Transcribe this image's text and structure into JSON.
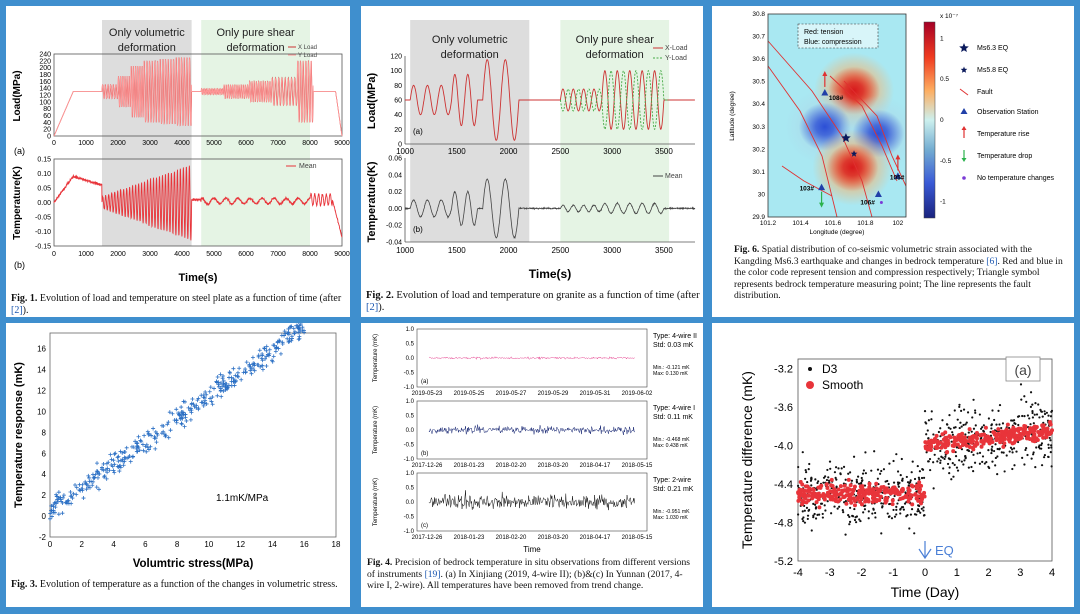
{
  "colors": {
    "background": "#3f8fce",
    "red": "#e8343a",
    "pink": "#e5398a",
    "navy": "#0f1f6e",
    "plus": "#2a6fc4",
    "black": "#111111"
  },
  "fig1": {
    "caption_label": "Fig. 1.",
    "caption": "Evolution of load and temperature on steel plate as a function of time (after ",
    "caption_ref": "[2]",
    "caption_end": ").",
    "region_vol": "Only volumetric deformation",
    "region_shear": "Only pure shear deformation",
    "panel_a": "(a)",
    "panel_b": "(b)",
    "xlabel": "Time(s)",
    "ylabel_top": "Load(MPa)",
    "ylabel_bottom": "Temperature(K)",
    "legend_x": "X Load",
    "legend_y": "Y Load",
    "legend_mean": "Mean",
    "x_ticks": [
      "0",
      "1000",
      "2000",
      "3000",
      "4000",
      "5000",
      "6000",
      "7000",
      "8000",
      "9000"
    ],
    "y_ticks_top": [
      "240",
      "220",
      "200",
      "180",
      "160",
      "140",
      "120",
      "100",
      "80",
      "60",
      "40",
      "20",
      "0"
    ],
    "y_ticks_bottom": [
      "0.15",
      "0.10",
      "0.05",
      "0.00",
      "-0.05",
      "-0.10",
      "-0.15"
    ]
  },
  "fig2": {
    "caption_label": "Fig. 2.",
    "caption": "Evolution of load and temperature on granite as a function of time (after ",
    "caption_ref": "[2]",
    "caption_end": ").",
    "region_vol": "Only volumetric deformation",
    "region_shear": "Only pure shear deformation",
    "panel_a": "(a)",
    "panel_b": "(b)",
    "xlabel": "Time(s)",
    "ylabel_top": "Load(MPa)",
    "ylabel_bottom": "Temperature(K)",
    "legend_x": "X-Load",
    "legend_y": "Y-Load",
    "legend_mean": "Mean",
    "x_ticks": [
      "1000",
      "1500",
      "2000",
      "2500",
      "3000",
      "3500"
    ],
    "y_ticks_top": [
      "120",
      "100",
      "80",
      "60",
      "40",
      "20",
      "0"
    ],
    "y_ticks_bottom": [
      "0.06",
      "0.04",
      "0.02",
      "0.00",
      "-0.02",
      "-0.04"
    ]
  },
  "fig6": {
    "caption_label": "Fig. 6.",
    "caption": "Spatial distribution of co-seismic volumetric strain associated with the Kangding Ms6.3 earthquake and changes in bedrock temperature ",
    "caption_ref": "[6]",
    "caption_end": ". Red and blue in the color code represent tension and compression respectively; Triangle symbol represents bedrock temperature measuring point; The line represents the fault distribution.",
    "box_red": "Red: tension",
    "box_blue": "Blue: compression",
    "xlabel": "Longitude (degree)",
    "ylabel": "Latitude (degree)",
    "x_ticks": [
      "101.2",
      "101.4",
      "101.6",
      "101.8",
      "102"
    ],
    "y_ticks": [
      "30.8",
      "30.7",
      "30.6",
      "30.5",
      "30.4",
      "30.3",
      "30.2",
      "30.1",
      "30",
      "29.9"
    ],
    "cb_exp": "x 10⁻⁷",
    "cb_ticks": [
      "1",
      "0.5",
      "0",
      "-0.5",
      "-1"
    ],
    "stations": [
      "108#",
      "103#",
      "106#",
      "105#"
    ],
    "legend": [
      "Ms6.3 EQ",
      "Ms5.8 EQ",
      "Fault",
      "Observation Station",
      "Temperature rise",
      "Temperature drop",
      "No temperature changes"
    ]
  },
  "fig3": {
    "caption_label": "Fig. 3.",
    "caption": "Evolution of temperature as a function of the changes in volumetric stress.",
    "annotation": "1.1mK/MPa",
    "xlabel": "Volumtric stress(MPa)",
    "ylabel": "Temperature response (mK)",
    "x_ticks": [
      "0",
      "2",
      "4",
      "6",
      "8",
      "10",
      "12",
      "14",
      "16",
      "18"
    ],
    "y_ticks": [
      "16",
      "14",
      "12",
      "10",
      "8",
      "6",
      "4",
      "2",
      "0",
      "-2"
    ]
  },
  "fig4": {
    "caption_label": "Fig. 4.",
    "caption": "Precision of bedrock temperature in situ observations from different versions of instruments ",
    "caption_ref": "[19]",
    "caption_end": ". (a) In Xinjiang (2019, 4-wire II); (b)&(c) In Yunnan (2017, 4-wire I, 2-wire). All temperatures have been removed from trend change.",
    "ylabel": "Temperature (mK)",
    "xlabel": "Time",
    "y_ticks": [
      "1.0",
      "0.5",
      "0.0",
      "-0.5",
      "-1.0"
    ],
    "sub": [
      {
        "label": "(a)",
        "type": "Type: 4-wire II",
        "std": "Std: 0.03 mK",
        "min": "Min.: -0.121 mK",
        "max": "Max: 0.130 mK",
        "x_ticks": [
          "2019-05-23",
          "2019-05-25",
          "2019-05-27",
          "2019-05-29",
          "2019-05-31",
          "2019-06-02"
        ]
      },
      {
        "label": "(b)",
        "type": "Type: 4-wire I",
        "std": "Std: 0.11 mK",
        "min": "Min.: -0.468 mK",
        "max": "Max: 0.438 mK",
        "x_ticks": [
          "2017-12-26",
          "2018-01-23",
          "2018-02-20",
          "2018-03-20",
          "2018-04-17",
          "2018-05-15"
        ]
      },
      {
        "label": "(c)",
        "type": "Type: 2-wire",
        "std": "Std: 0.21 mK",
        "min": "Min.: -0.951 mK",
        "max": "Max: 1.030 mK",
        "x_ticks": [
          "2017-12-26",
          "2018-01-23",
          "2018-02-20",
          "2018-03-20",
          "2018-04-17",
          "2018-05-15"
        ]
      }
    ]
  },
  "fig_eq": {
    "panel": "(a)",
    "legend_d3": "D3",
    "legend_smooth": "Smooth",
    "xlabel": "Time (Day)",
    "ylabel": "Temperature difference (mK)",
    "eq_label": "EQ",
    "x_ticks": [
      "-4",
      "-3",
      "-2",
      "-1",
      "0",
      "1",
      "2",
      "3",
      "4"
    ],
    "y_ticks": [
      "-3.2",
      "-3.6",
      "-4.0",
      "-4.4",
      "-4.8",
      "-5.2"
    ]
  },
  "chart_data": [
    {
      "type": "line",
      "id": "fig1",
      "title": "",
      "xlabel": "Time(s)",
      "xlim": [
        0,
        9000
      ],
      "panels": [
        {
          "ylabel": "Load(MPa)",
          "ylim": [
            0,
            240
          ],
          "series": [
            {
              "name": "X Load",
              "baseline": 130,
              "ramp": [
                [
                  0,
                  0
                ],
                [
                  600,
                  130
                ]
              ],
              "segments": [
                [
                  1500,
                  2000,
                  20,
                  6
                ],
                [
                  2000,
                  2400,
                  45,
                  6
                ],
                [
                  2400,
                  2800,
                  75,
                  6
                ],
                [
                  2800,
                  3300,
                  90,
                  6
                ],
                [
                  3300,
                  3800,
                  95,
                  6
                ],
                [
                  3800,
                  4300,
                  100,
                  6
                ],
                [
                  4600,
                  5300,
                  8,
                  14
                ],
                [
                  5300,
                  6100,
                  20,
                  12
                ],
                [
                  6100,
                  6800,
                  30,
                  10
                ],
                [
                  6800,
                  7600,
                  40,
                  8
                ],
                [
                  7600,
                  8100,
                  90,
                  6
                ]
              ],
              "end": [
                [
                  8800,
                  130
                ],
                [
                  9000,
                  0
                ]
              ]
            },
            {
              "name": "Y Load",
              "pattern": "phase-shifted copy of X Load"
            }
          ]
        },
        {
          "ylabel": "Temperature(K)",
          "ylim": [
            -0.15,
            0.15
          ],
          "series": [
            {
              "name": "Mean",
              "notes": "rise to 0.09 at 600 s, decay, oscillation up to ±0.13 in 1500-4300 s, near 0.00 in 4600-8000 s, drop to -0.12 at 9000 s"
            }
          ]
        }
      ]
    },
    {
      "type": "line",
      "id": "fig2",
      "title": "",
      "xlabel": "Time(s)",
      "xlim": [
        1000,
        3800
      ],
      "panels": [
        {
          "ylabel": "Load(MPa)",
          "ylim": [
            0,
            120
          ],
          "series": [
            {
              "name": "X-Load",
              "baseline": 60,
              "segments": [
                [
                  1050,
                  1450,
                  20,
                  3
                ],
                [
                  1450,
                  1700,
                  35,
                  2
                ],
                [
                  1750,
                  2100,
                  55,
                  2
                ],
                [
                  2200,
                  2500,
                  0,
                  0
                ],
                [
                  2500,
                  2900,
                  15,
                  4
                ],
                [
                  2900,
                  3500,
                  40,
                  5
                ]
              ]
            },
            {
              "name": "Y-Load",
              "pattern": "antiphase of X-Load in shear region"
            }
          ]
        },
        {
          "ylabel": "Temperature(K)",
          "ylim": [
            -0.04,
            0.06
          ],
          "series": [
            {
              "name": "Mean",
              "segments": [
                [
                  1050,
                  1450,
                  0.01,
                  3
                ],
                [
                  1450,
                  1700,
                  0.02,
                  2
                ],
                [
                  1750,
                  2100,
                  0.035,
                  2
                ],
                [
                  2500,
                  2900,
                  0.004,
                  4
                ],
                [
                  2900,
                  3500,
                  0.006,
                  5
                ]
              ]
            }
          ]
        }
      ]
    },
    {
      "type": "heatmap",
      "id": "fig6",
      "title": "",
      "xlabel": "Longitude (degree)",
      "ylabel": "Latitude (degree)",
      "xlim": [
        101.2,
        102.05
      ],
      "ylim": [
        29.9,
        30.8
      ],
      "colorbar": [
        -1.2,
        1.2
      ],
      "colorbar_scale": "x 10^-7",
      "lobes": [
        {
          "lon": 101.73,
          "lat": 30.46,
          "sign": "tension"
        },
        {
          "lon": 101.55,
          "lat": 30.3,
          "sign": "compression"
        },
        {
          "lon": 101.88,
          "lat": 30.27,
          "sign": "compression"
        },
        {
          "lon": 101.72,
          "lat": 30.12,
          "sign": "tension"
        }
      ],
      "events": [
        {
          "name": "Ms6.3 EQ",
          "lon": 101.68,
          "lat": 30.25
        },
        {
          "name": "Ms5.8 EQ",
          "lon": 101.73,
          "lat": 30.18
        }
      ],
      "stations": [
        {
          "name": "108#",
          "lon": 101.55,
          "lat": 30.45,
          "change": "rise"
        },
        {
          "name": "103#",
          "lon": 101.53,
          "lat": 30.03,
          "change": "drop"
        },
        {
          "name": "106#",
          "lon": 101.88,
          "lat": 30.0,
          "change": "none"
        },
        {
          "name": "105#",
          "lon": 102.0,
          "lat": 30.08,
          "change": "rise"
        }
      ]
    },
    {
      "type": "scatter",
      "id": "fig3",
      "title": "",
      "xlabel": "Volumtric stress(MPa)",
      "ylabel": "Temperature response (mK)",
      "xlim": [
        0,
        18
      ],
      "ylim": [
        -2,
        17.5
      ],
      "fit": {
        "slope": 1.1,
        "intercept": 0.5
      },
      "x_range": [
        0,
        16
      ],
      "noise": 1.2,
      "n": 400
    },
    {
      "type": "line",
      "id": "fig4",
      "xlabel": "Time",
      "panels": [
        {
          "label": "(a)",
          "std": 0.03,
          "ylim": [
            -1,
            1
          ],
          "color": "pink"
        },
        {
          "label": "(b)",
          "std": 0.11,
          "ylim": [
            -1,
            1
          ],
          "color": "navy"
        },
        {
          "label": "(c)",
          "std": 0.21,
          "ylim": [
            -1,
            1
          ],
          "color": "black"
        }
      ]
    },
    {
      "type": "scatter",
      "id": "fig_eq",
      "xlabel": "Time (Day)",
      "ylabel": "Temperature difference (mK)",
      "xlim": [
        -4,
        4
      ],
      "ylim": [
        -5.2,
        -3.1
      ],
      "series": [
        {
          "name": "D3",
          "before": -4.5,
          "after": -4.0,
          "spread": 0.35
        },
        {
          "name": "Smooth",
          "before": -4.5,
          "after": -4.0,
          "spread": 0.1
        }
      ],
      "event": {
        "name": "EQ",
        "x": 0
      }
    }
  ]
}
